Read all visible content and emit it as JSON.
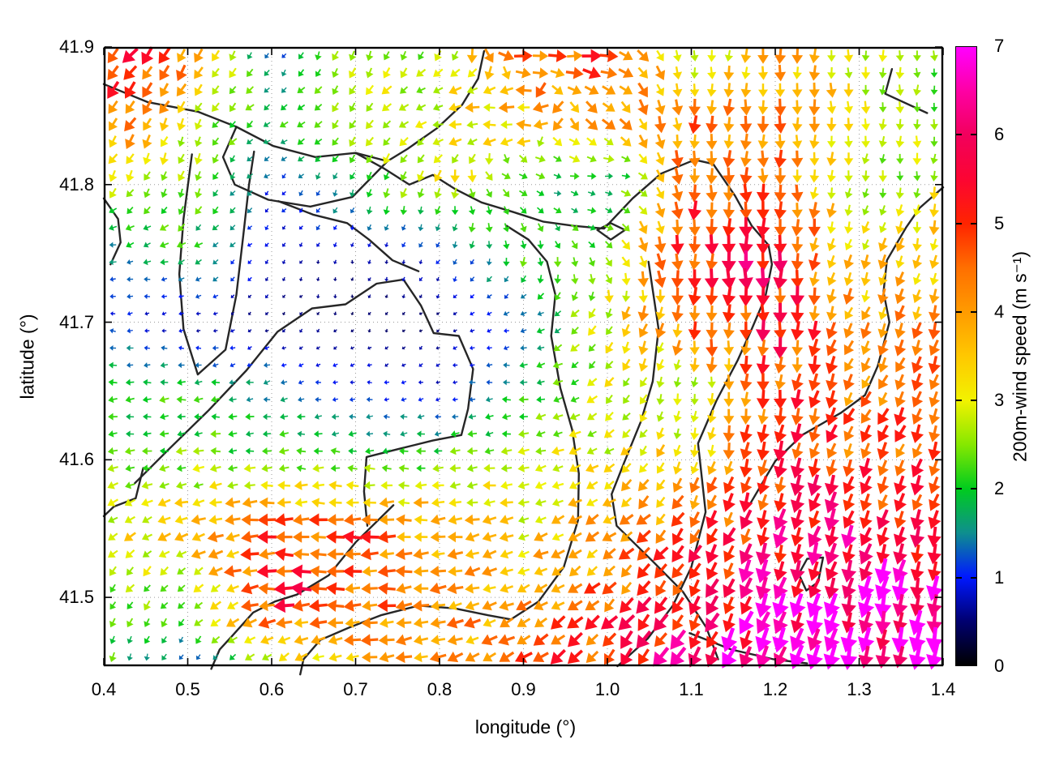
{
  "figure": {
    "xlabel": "longitude (°)",
    "ylabel": "latitude (°)",
    "x_ticks": [
      0.4,
      0.5,
      0.6,
      0.7,
      0.8,
      0.9,
      1.0,
      1.1,
      1.2,
      1.3,
      1.4
    ],
    "x_tick_labels": [
      "0.4",
      "0.5",
      "0.6",
      "0.7",
      "0.8",
      "0.9",
      "1.0",
      "1.1",
      "1.2",
      "1.3",
      "1.4"
    ],
    "y_ticks": [
      41.9,
      41.8,
      41.7,
      41.6,
      41.5
    ],
    "y_tick_labels": [
      "41.9",
      "41.8",
      "41.7",
      "41.6",
      "41.5"
    ]
  },
  "colorbar": {
    "label": "200m-wind speed (m s⁻¹)",
    "tick_values": [
      0,
      1,
      2,
      3,
      4,
      5,
      6,
      7
    ],
    "tick_labels": [
      "0",
      "1",
      "2",
      "3",
      "4",
      "5",
      "6",
      "7"
    ],
    "min": 0,
    "max": 7
  },
  "chart_data": {
    "type": "quiver",
    "title": "",
    "xlabel": "longitude (°)",
    "ylabel": "latitude (°)",
    "xlim": [
      0.4,
      1.4
    ],
    "ylim": [
      41.45,
      41.9
    ],
    "grid": true,
    "legend": "colorbar right, 200m-wind speed (m s⁻¹), 0–7",
    "speed_units": "m s⁻¹",
    "direction_convention": "screen angle in degrees: 0=east(right), 90=south(down), 180=west(left); arrows point downwind",
    "sample_lons": [
      0.4,
      0.5,
      0.6,
      0.7,
      0.8,
      0.9,
      1.0,
      1.1,
      1.2,
      1.3,
      1.4
    ],
    "sample_lats": [
      41.9,
      41.85,
      41.8,
      41.75,
      41.7,
      41.65,
      41.6,
      41.55,
      41.5,
      41.45
    ],
    "speed": [
      [
        5.8,
        4.5,
        0.9,
        2.8,
        2.5,
        4.5,
        5.0,
        2.0,
        4.0,
        2.6,
        2.5
      ],
      [
        4.8,
        3.0,
        2.0,
        2.6,
        3.0,
        3.5,
        4.0,
        4.2,
        4.2,
        3.0,
        2.2
      ],
      [
        2.6,
        2.4,
        1.0,
        2.0,
        3.0,
        2.2,
        1.4,
        4.5,
        4.5,
        2.2,
        3.0
      ],
      [
        1.4,
        2.0,
        0.8,
        0.6,
        1.0,
        2.2,
        2.4,
        5.2,
        5.5,
        3.2,
        3.6
      ],
      [
        1.0,
        0.6,
        0.5,
        0.4,
        0.5,
        1.2,
        3.0,
        4.5,
        5.3,
        3.8,
        4.2
      ],
      [
        2.0,
        2.0,
        1.5,
        1.0,
        0.8,
        2.0,
        2.8,
        2.4,
        4.8,
        4.2,
        4.8
      ],
      [
        2.2,
        2.4,
        2.2,
        2.0,
        2.2,
        2.8,
        3.0,
        3.4,
        5.0,
        4.8,
        4.5
      ],
      [
        3.0,
        3.5,
        4.5,
        4.8,
        3.8,
        3.2,
        3.8,
        4.5,
        5.5,
        5.5,
        5.0
      ],
      [
        2.5,
        2.4,
        5.2,
        4.5,
        4.0,
        3.8,
        4.5,
        5.5,
        6.2,
        6.5,
        6.8
      ],
      [
        2.2,
        1.0,
        2.8,
        3.5,
        3.8,
        4.5,
        5.2,
        6.0,
        6.8,
        7.0,
        7.0
      ]
    ],
    "direction_deg_screen": [
      [
        135,
        120,
        120,
        100,
        115,
        5,
        0,
        90,
        90,
        90,
        90
      ],
      [
        130,
        115,
        150,
        130,
        175,
        185,
        40,
        95,
        90,
        90,
        90
      ],
      [
        120,
        110,
        140,
        110,
        100,
        20,
        0,
        90,
        90,
        100,
        95
      ],
      [
        180,
        150,
        130,
        100,
        120,
        90,
        45,
        90,
        90,
        110,
        100
      ],
      [
        180,
        170,
        140,
        110,
        140,
        170,
        120,
        95,
        90,
        115,
        105
      ],
      [
        175,
        180,
        170,
        180,
        170,
        175,
        130,
        95,
        95,
        120,
        110
      ],
      [
        170,
        175,
        180,
        180,
        175,
        170,
        150,
        105,
        100,
        115,
        110
      ],
      [
        140,
        160,
        180,
        180,
        175,
        160,
        145,
        125,
        105,
        110,
        105
      ],
      [
        120,
        135,
        180,
        180,
        170,
        155,
        135,
        120,
        110,
        105,
        100
      ],
      [
        100,
        120,
        140,
        175,
        160,
        145,
        130,
        120,
        110,
        100,
        95
      ]
    ],
    "palette": [
      [
        0.0,
        "#000000"
      ],
      [
        0.5,
        "#000070"
      ],
      [
        1.0,
        "#0018ff"
      ],
      [
        1.5,
        "#0e8f8e"
      ],
      [
        2.0,
        "#00cc1e"
      ],
      [
        2.5,
        "#86e800"
      ],
      [
        3.0,
        "#f2f200"
      ],
      [
        3.5,
        "#ffc800"
      ],
      [
        4.0,
        "#ff9b00"
      ],
      [
        4.5,
        "#ff6f00"
      ],
      [
        5.0,
        "#ff2400"
      ],
      [
        5.5,
        "#fc0532"
      ],
      [
        6.0,
        "#f2005c"
      ],
      [
        6.5,
        "#fe00a4"
      ],
      [
        7.0,
        "#ff00ff"
      ]
    ],
    "arrow_grid": {
      "cols": 49,
      "rows": 36
    },
    "contours": [
      [
        [
          0.4,
          41.873
        ],
        [
          0.452,
          41.86
        ],
        [
          0.512,
          41.853
        ],
        [
          0.558,
          41.842
        ],
        [
          0.602,
          41.828
        ],
        [
          0.652,
          41.82
        ],
        [
          0.7,
          41.823
        ],
        [
          0.738,
          41.817
        ]
      ],
      [
        [
          0.558,
          41.842
        ],
        [
          0.542,
          41.82
        ],
        [
          0.556,
          41.8
        ],
        [
          0.596,
          41.789
        ],
        [
          0.646,
          41.784
        ],
        [
          0.696,
          41.791
        ],
        [
          0.738,
          41.817
        ]
      ],
      [
        [
          0.738,
          41.817
        ],
        [
          0.762,
          41.826
        ],
        [
          0.797,
          41.841
        ],
        [
          0.827,
          41.858
        ],
        [
          0.846,
          41.877
        ],
        [
          0.853,
          41.897
        ]
      ],
      [
        [
          0.505,
          41.822
        ],
        [
          0.495,
          41.775
        ],
        [
          0.49,
          41.735
        ],
        [
          0.495,
          41.695
        ],
        [
          0.512,
          41.662
        ],
        [
          0.545,
          41.68
        ],
        [
          0.558,
          41.72
        ],
        [
          0.566,
          41.762
        ],
        [
          0.573,
          41.8
        ],
        [
          0.579,
          41.824
        ]
      ],
      [
        [
          0.437,
          41.583
        ],
        [
          0.478,
          41.608
        ],
        [
          0.525,
          41.636
        ],
        [
          0.57,
          41.665
        ],
        [
          0.607,
          41.693
        ],
        [
          0.648,
          41.71
        ],
        [
          0.688,
          41.713
        ],
        [
          0.725,
          41.728
        ],
        [
          0.757,
          41.731
        ],
        [
          0.778,
          41.712
        ],
        [
          0.793,
          41.692
        ],
        [
          0.823,
          41.69
        ],
        [
          0.84,
          41.666
        ],
        [
          0.834,
          41.637
        ],
        [
          0.826,
          41.618
        ],
        [
          0.792,
          41.614
        ],
        [
          0.752,
          41.608
        ],
        [
          0.713,
          41.602
        ],
        [
          0.71,
          41.577
        ],
        [
          0.714,
          41.552
        ]
      ],
      [
        [
          0.7,
          41.823
        ],
        [
          0.733,
          41.812
        ],
        [
          0.764,
          41.8
        ],
        [
          0.792,
          41.807
        ],
        [
          0.818,
          41.797
        ],
        [
          0.85,
          41.787
        ],
        [
          0.888,
          41.78
        ],
        [
          0.924,
          41.773
        ],
        [
          0.96,
          41.77
        ],
        [
          0.996,
          41.768
        ],
        [
          1.03,
          41.79
        ],
        [
          1.064,
          41.808
        ],
        [
          1.104,
          41.818
        ],
        [
          1.126,
          41.815
        ],
        [
          1.152,
          41.792
        ],
        [
          1.172,
          41.77
        ],
        [
          1.192,
          41.756
        ],
        [
          1.196,
          41.742
        ],
        [
          1.188,
          41.718
        ],
        [
          1.172,
          41.695
        ],
        [
          1.155,
          41.672
        ],
        [
          1.13,
          41.643
        ],
        [
          1.108,
          41.612
        ],
        [
          1.117,
          41.562
        ],
        [
          1.1,
          41.522
        ],
        [
          1.078,
          41.494
        ],
        [
          1.048,
          41.47
        ],
        [
          1.012,
          41.45
        ]
      ],
      [
        [
          0.608,
          41.788
        ],
        [
          0.65,
          41.778
        ],
        [
          0.69,
          41.772
        ],
        [
          0.716,
          41.76
        ],
        [
          0.744,
          41.745
        ],
        [
          0.775,
          41.737
        ]
      ],
      [
        [
          0.88,
          41.77
        ],
        [
          0.906,
          41.76
        ],
        [
          0.928,
          41.744
        ],
        [
          0.938,
          41.72
        ],
        [
          0.933,
          41.69
        ],
        [
          0.944,
          41.652
        ],
        [
          0.958,
          41.622
        ],
        [
          0.966,
          41.59
        ],
        [
          0.965,
          41.556
        ],
        [
          0.948,
          41.522
        ],
        [
          0.918,
          41.497
        ],
        [
          0.885,
          41.484
        ],
        [
          0.858,
          41.487
        ],
        [
          0.818,
          41.492
        ],
        [
          0.775,
          41.494
        ],
        [
          0.73,
          41.487
        ],
        [
          0.692,
          41.478
        ],
        [
          0.658,
          41.469
        ],
        [
          0.638,
          41.455
        ],
        [
          0.634,
          41.444
        ]
      ],
      [
        [
          1.049,
          41.744
        ],
        [
          1.061,
          41.695
        ],
        [
          1.054,
          41.657
        ],
        [
          1.04,
          41.628
        ],
        [
          1.02,
          41.598
        ],
        [
          1.005,
          41.575
        ],
        [
          1.011,
          41.552
        ],
        [
          1.056,
          41.525
        ],
        [
          1.09,
          41.504
        ],
        [
          1.118,
          41.478
        ],
        [
          1.132,
          41.455
        ]
      ],
      [
        [
          0.745,
          41.567
        ],
        [
          0.7,
          41.54
        ],
        [
          0.668,
          41.516
        ],
        [
          0.63,
          41.502
        ],
        [
          0.604,
          41.497
        ],
        [
          0.578,
          41.489
        ],
        [
          0.553,
          41.472
        ],
        [
          0.538,
          41.462
        ],
        [
          0.528,
          41.448
        ]
      ],
      [
        [
          0.447,
          41.594
        ],
        [
          0.438,
          41.572
        ],
        [
          0.412,
          41.566
        ],
        [
          0.4,
          41.559
        ]
      ],
      [
        [
          1.4,
          41.798
        ],
        [
          1.372,
          41.783
        ],
        [
          1.356,
          41.769
        ],
        [
          1.333,
          41.745
        ],
        [
          1.329,
          41.722
        ],
        [
          1.336,
          41.7
        ],
        [
          1.322,
          41.668
        ],
        [
          1.307,
          41.647
        ],
        [
          1.278,
          41.634
        ],
        [
          1.232,
          41.618
        ],
        [
          1.2,
          41.599
        ],
        [
          1.17,
          41.568
        ]
      ],
      [
        [
          1.339,
          41.884
        ],
        [
          1.331,
          41.866
        ],
        [
          1.381,
          41.852
        ]
      ],
      [
        [
          1.238,
          41.528
        ],
        [
          1.257,
          41.529
        ],
        [
          1.251,
          41.511
        ],
        [
          1.237,
          41.505
        ],
        [
          1.228,
          41.517
        ],
        [
          1.238,
          41.528
        ]
      ],
      [
        [
          0.988,
          41.767
        ],
        [
          1.004,
          41.772
        ],
        [
          1.021,
          41.767
        ],
        [
          1.004,
          41.76
        ],
        [
          0.988,
          41.767
        ]
      ],
      [
        [
          1.098,
          41.474
        ],
        [
          1.148,
          41.462
        ],
        [
          1.198,
          41.455
        ],
        [
          1.238,
          41.452
        ]
      ],
      [
        [
          0.4,
          41.79
        ],
        [
          0.417,
          41.775
        ],
        [
          0.42,
          41.758
        ],
        [
          0.408,
          41.742
        ]
      ]
    ]
  }
}
